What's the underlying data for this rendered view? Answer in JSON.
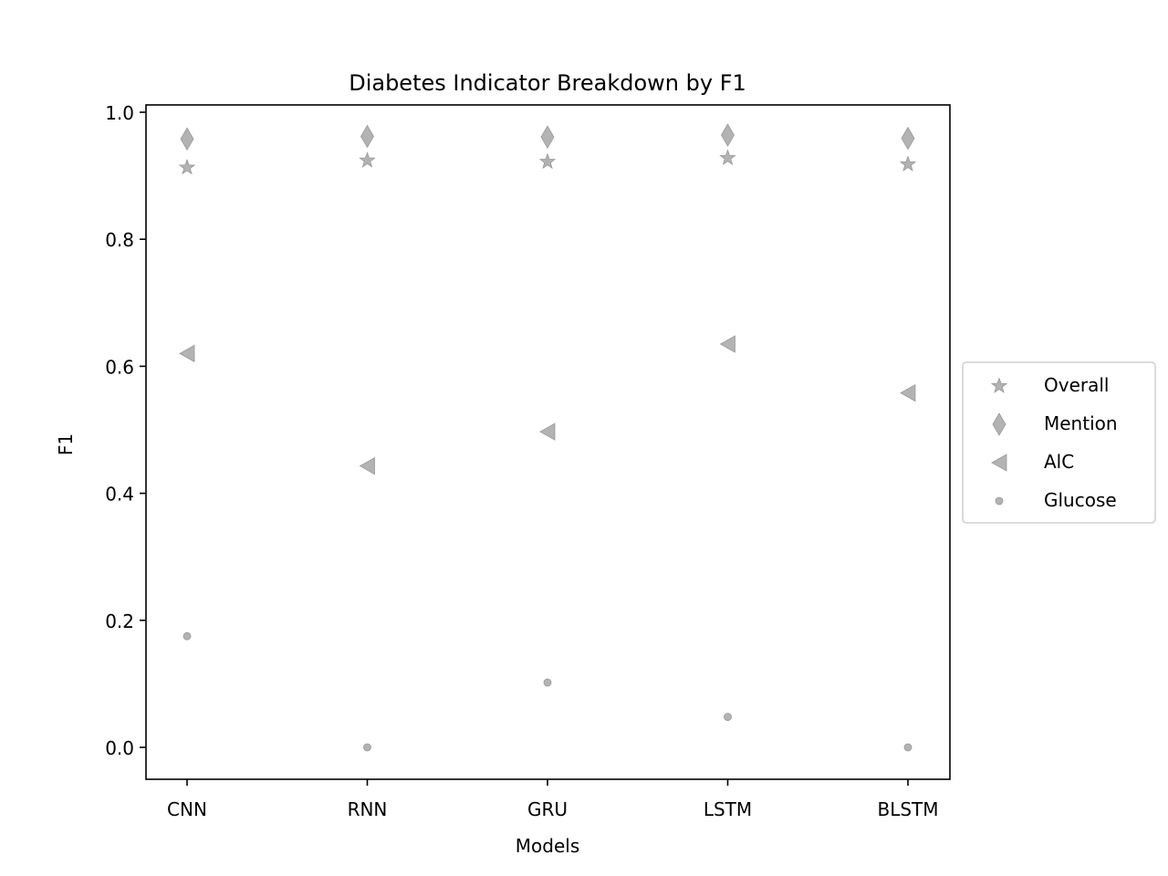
{
  "chart_data": {
    "type": "scatter",
    "title": "Diabetes Indicator Breakdown by F1",
    "xlabel": "Models",
    "ylabel": "F1",
    "categories": [
      "CNN",
      "RNN",
      "GRU",
      "LSTM",
      "BLSTM"
    ],
    "ylim": [
      -0.05,
      1.01
    ],
    "yticks": [
      "0.0",
      "0.2",
      "0.4",
      "0.6",
      "0.8",
      "1.0"
    ],
    "grid": false,
    "legend_position": "center-right outside",
    "marker_color": "#b3b3b3",
    "marker_edge_color": "#999999",
    "series": [
      {
        "name": "Overall",
        "marker": "star",
        "values": [
          0.913,
          0.924,
          0.922,
          0.928,
          0.918
        ]
      },
      {
        "name": "Mention",
        "marker": "thin-diamond",
        "values": [
          0.958,
          0.962,
          0.961,
          0.964,
          0.959
        ]
      },
      {
        "name": "AlC",
        "marker": "triangle-left",
        "values": [
          0.62,
          0.443,
          0.497,
          0.635,
          0.558
        ]
      },
      {
        "name": "Glucose",
        "marker": "point",
        "values": [
          0.175,
          0.0,
          0.102,
          0.048,
          0.0
        ]
      }
    ]
  }
}
